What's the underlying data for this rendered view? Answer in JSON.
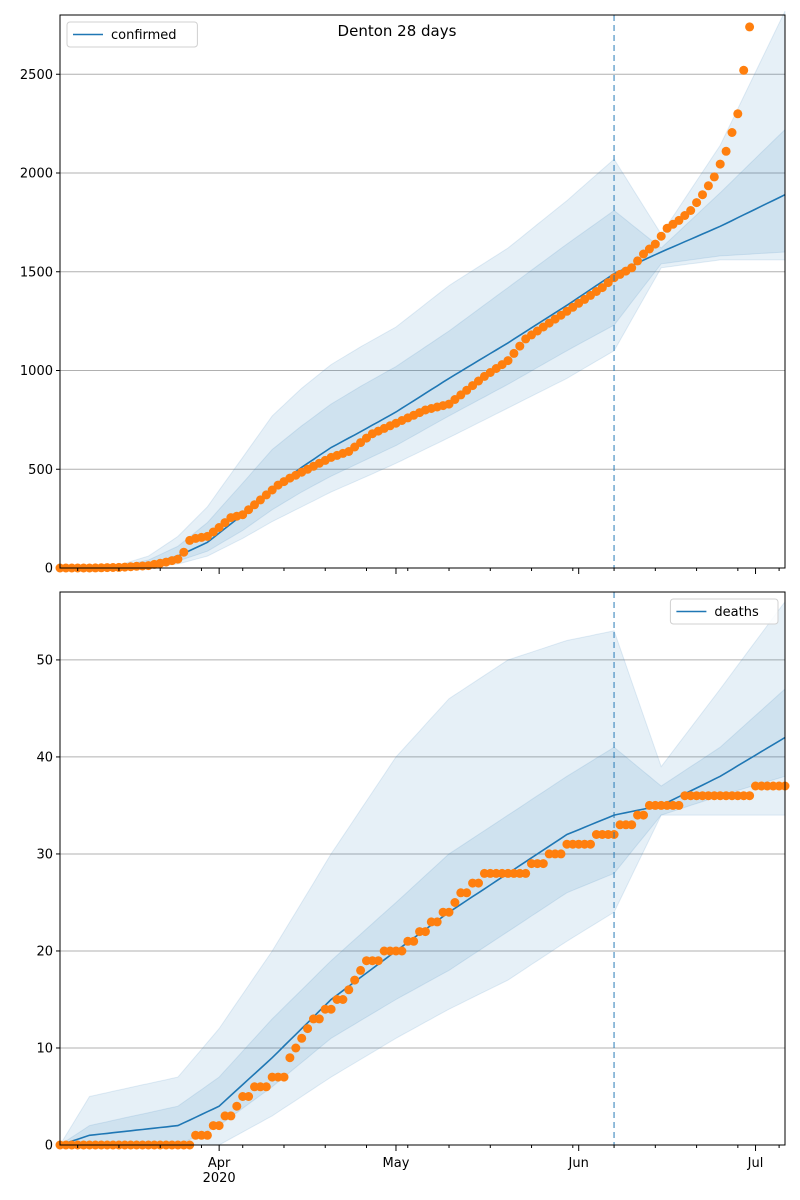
{
  "colors": {
    "model_line": "#1f77b4",
    "band": "#1f77b4",
    "observed": "#ff7f0e",
    "grid": "#b0b0b0",
    "vline": "#1f77b4"
  },
  "x_axis": {
    "start_date": "2020-03-05",
    "end_date": "2020-07-06",
    "major_ticks": [
      {
        "date": "2020-04-01",
        "label": "Apr",
        "sublabel": "2020"
      },
      {
        "date": "2020-05-01",
        "label": "May",
        "sublabel": ""
      },
      {
        "date": "2020-06-01",
        "label": "Jun",
        "sublabel": ""
      },
      {
        "date": "2020-07-01",
        "label": "Jul",
        "sublabel": ""
      }
    ],
    "minor_tick_interval_days": 7,
    "minor_tick_start": "2020-03-08",
    "forecast_start": "2020-06-07"
  },
  "chart_data": [
    {
      "type": "line",
      "title": "Denton 28 days",
      "legend": "top-left",
      "grid": "horizontal",
      "series": [
        {
          "name": "confirmed",
          "kind": "model"
        },
        {
          "kind": "observed"
        }
      ],
      "ylim": [
        0,
        2800
      ],
      "yticks": [
        0,
        500,
        1000,
        1500,
        2000,
        2500
      ],
      "model": {
        "x": [
          "2020-03-05",
          "2020-03-15",
          "2020-03-20",
          "2020-03-25",
          "2020-03-30",
          "2020-04-05",
          "2020-04-10",
          "2020-04-15",
          "2020-04-20",
          "2020-04-25",
          "2020-05-01",
          "2020-05-10",
          "2020-05-20",
          "2020-05-30",
          "2020-06-07",
          "2020-06-15",
          "2020-06-25",
          "2020-07-06"
        ],
        "y": [
          0,
          5,
          20,
          60,
          130,
          270,
          400,
          510,
          610,
          690,
          790,
          960,
          1140,
          1330,
          1490,
          1600,
          1730,
          1890
        ],
        "bands": [
          {
            "lo": [
              0,
              2,
              10,
              35,
              85,
              190,
              295,
              385,
              465,
              535,
              620,
              770,
              930,
              1100,
              1230,
              1540,
              1580,
              1600
            ],
            "hi": [
              0,
              10,
              40,
              110,
              230,
              430,
              600,
              720,
              830,
              920,
              1020,
              1200,
              1420,
              1640,
              1810,
              1620,
              1900,
              2220
            ]
          },
          {
            "lo": [
              0,
              1,
              5,
              20,
              60,
              150,
              235,
              310,
              385,
              450,
              530,
              660,
              810,
              960,
              1100,
              1520,
              1560,
              1560
            ],
            "hi": [
              0,
              15,
              60,
              160,
              310,
              560,
              770,
              910,
              1030,
              1120,
              1220,
              1430,
              1620,
              1860,
              2070,
              1690,
              2140,
              2820
            ]
          }
        ]
      },
      "observed": {
        "x": [
          "2020-03-05",
          "2020-03-10",
          "2020-03-15",
          "2020-03-20",
          "2020-03-23",
          "2020-03-25",
          "2020-03-26",
          "2020-03-27",
          "2020-03-28",
          "2020-03-30",
          "2020-04-01",
          "2020-04-03",
          "2020-04-05",
          "2020-04-07",
          "2020-04-09",
          "2020-04-11",
          "2020-04-13",
          "2020-04-16",
          "2020-04-20",
          "2020-04-23",
          "2020-04-27",
          "2020-04-30",
          "2020-05-03",
          "2020-05-06",
          "2020-05-10",
          "2020-05-13",
          "2020-05-16",
          "2020-05-20",
          "2020-05-23",
          "2020-05-26",
          "2020-05-29",
          "2020-06-02",
          "2020-06-05",
          "2020-06-07",
          "2020-06-10",
          "2020-06-12",
          "2020-06-14",
          "2020-06-16",
          "2020-06-18",
          "2020-06-20",
          "2020-06-22",
          "2020-06-24",
          "2020-06-26",
          "2020-06-28",
          "2020-06-30"
        ],
        "y": [
          0,
          0,
          3,
          12,
          30,
          45,
          80,
          140,
          150,
          160,
          205,
          255,
          270,
          320,
          370,
          420,
          455,
          500,
          560,
          590,
          680,
          720,
          760,
          800,
          830,
          900,
          970,
          1050,
          1160,
          1220,
          1280,
          1360,
          1420,
          1470,
          1520,
          1590,
          1640,
          1720,
          1760,
          1810,
          1890,
          1980,
          2110,
          2300,
          2740
        ]
      }
    },
    {
      "type": "line",
      "title": "",
      "legend": "top-right",
      "grid": "horizontal",
      "series": [
        {
          "name": "deaths",
          "kind": "model"
        },
        {
          "kind": "observed"
        }
      ],
      "ylim": [
        0,
        57
      ],
      "yticks": [
        0,
        10,
        20,
        30,
        40,
        50
      ],
      "model": {
        "x": [
          "2020-03-05",
          "2020-03-10",
          "2020-03-25",
          "2020-04-01",
          "2020-04-10",
          "2020-04-20",
          "2020-05-01",
          "2020-05-10",
          "2020-05-20",
          "2020-05-30",
          "2020-06-07",
          "2020-06-15",
          "2020-06-25",
          "2020-07-06"
        ],
        "y": [
          0,
          1,
          2,
          4,
          9,
          15,
          20,
          24,
          28,
          32,
          34,
          35,
          38,
          42
        ],
        "bands": [
          {
            "lo": [
              0,
              0,
              0,
              2,
              6,
              11,
              15,
              18,
              22,
              26,
              28,
              34,
              36,
              38
            ],
            "hi": [
              0,
              2,
              4,
              7,
              13,
              19,
              25,
              30,
              34,
              38,
              41,
              37,
              41,
              47
            ]
          },
          {
            "lo": [
              0,
              0,
              0,
              0,
              3,
              7,
              11,
              14,
              17,
              21,
              24,
              34,
              34,
              34
            ],
            "hi": [
              0,
              5,
              7,
              12,
              20,
              30,
              40,
              46,
              50,
              52,
              53,
              39,
              47,
              56
            ]
          }
        ]
      },
      "observed": {
        "x": [
          "2020-03-05",
          "2020-03-27",
          "2020-03-29",
          "2020-04-01",
          "2020-04-04",
          "2020-04-07",
          "2020-04-12",
          "2020-04-14",
          "2020-04-17",
          "2020-04-22",
          "2020-04-26",
          "2020-05-01",
          "2020-05-06",
          "2020-05-11",
          "2020-05-17",
          "2020-05-22",
          "2020-05-28",
          "2020-06-01",
          "2020-06-06",
          "2020-06-10",
          "2020-06-13",
          "2020-06-25",
          "2020-07-06"
        ],
        "y": [
          0,
          0,
          1,
          2,
          4,
          6,
          7,
          10,
          13,
          15,
          19,
          20,
          22,
          25,
          28,
          28,
          30,
          31,
          32,
          33,
          35,
          36,
          37
        ]
      }
    }
  ]
}
